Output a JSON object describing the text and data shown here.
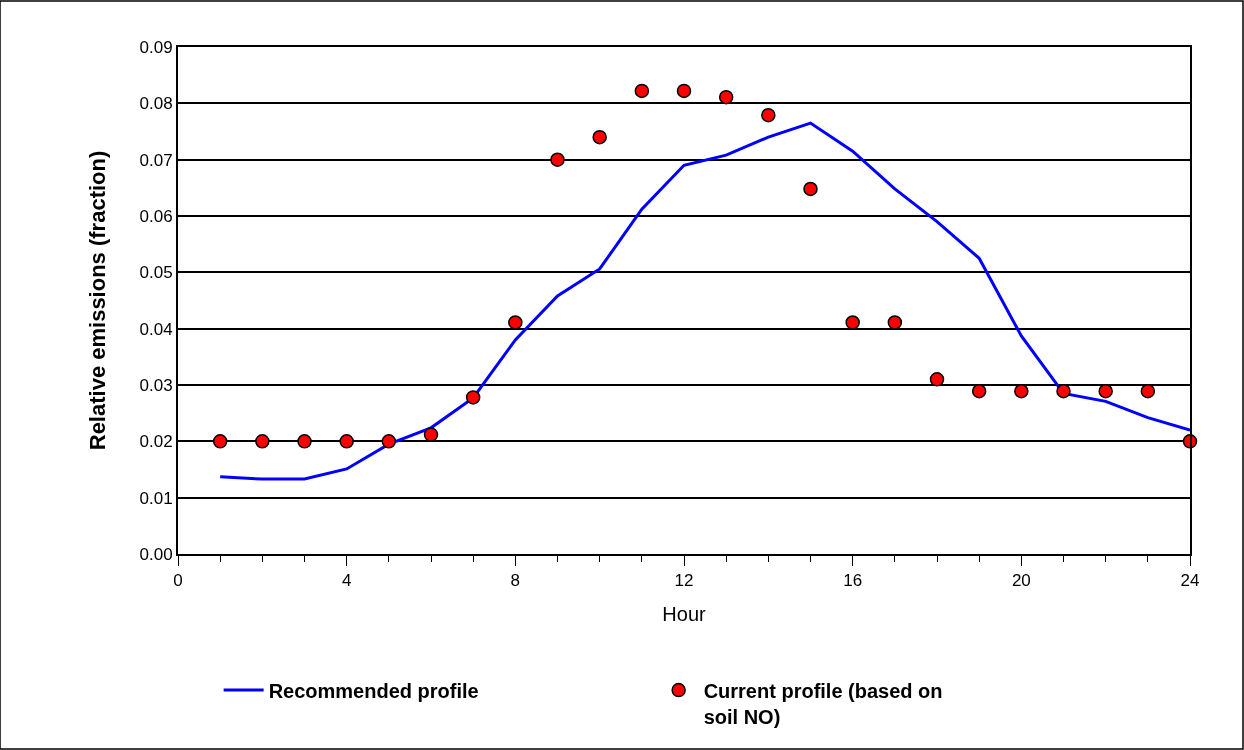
{
  "chart_data": {
    "type": "line",
    "xlabel": "Hour",
    "ylabel": "Relative emissions (fraction)",
    "x": [
      1,
      2,
      3,
      4,
      5,
      6,
      7,
      8,
      9,
      10,
      11,
      12,
      13,
      14,
      15,
      16,
      17,
      18,
      19,
      20,
      21,
      22,
      23,
      24
    ],
    "series": [
      {
        "name": "Recommended profile",
        "color": "#0000ff",
        "marker": "none",
        "values": [
          0.0137,
          0.0133,
          0.0133,
          0.0151,
          0.0195,
          0.0224,
          0.0277,
          0.038,
          0.0458,
          0.0506,
          0.0612,
          0.069,
          0.0708,
          0.074,
          0.0765,
          0.0715,
          0.0648,
          0.059,
          0.0525,
          0.0387,
          0.0285,
          0.0271,
          0.0242,
          0.022
        ]
      },
      {
        "name": "Current profile (based on soil NO)",
        "type": "scatter",
        "color": "#ff0000",
        "marker": "circle",
        "values": [
          0.02,
          0.02,
          0.02,
          0.02,
          0.02,
          0.0212,
          0.0278,
          0.0411,
          0.07,
          0.074,
          0.0822,
          0.0822,
          0.0811,
          0.0779,
          0.0648,
          0.0411,
          0.0411,
          0.031,
          0.0289,
          0.0289,
          0.0289,
          0.0289,
          0.0289,
          0.02
        ]
      }
    ],
    "xlim": [
      0,
      24
    ],
    "xticks": [
      0,
      4,
      8,
      12,
      16,
      20,
      24
    ],
    "ylim": [
      0,
      0.09
    ],
    "yticks": [
      {
        "value": 0,
        "label": "0.00"
      },
      {
        "value": 0.01,
        "label": "0.01"
      },
      {
        "value": 0.02,
        "label": "0.02"
      },
      {
        "value": 0.03,
        "label": "0.03"
      },
      {
        "value": 0.04,
        "label": "0.04"
      },
      {
        "value": 0.05,
        "label": "0.05"
      },
      {
        "value": 0.06,
        "label": "0.06"
      },
      {
        "value": 0.07,
        "label": "0.07"
      },
      {
        "value": 0.08,
        "label": "0.08"
      },
      {
        "value": 0.09,
        "label": "0.09"
      }
    ],
    "grid": "y",
    "legend": "bottom"
  }
}
